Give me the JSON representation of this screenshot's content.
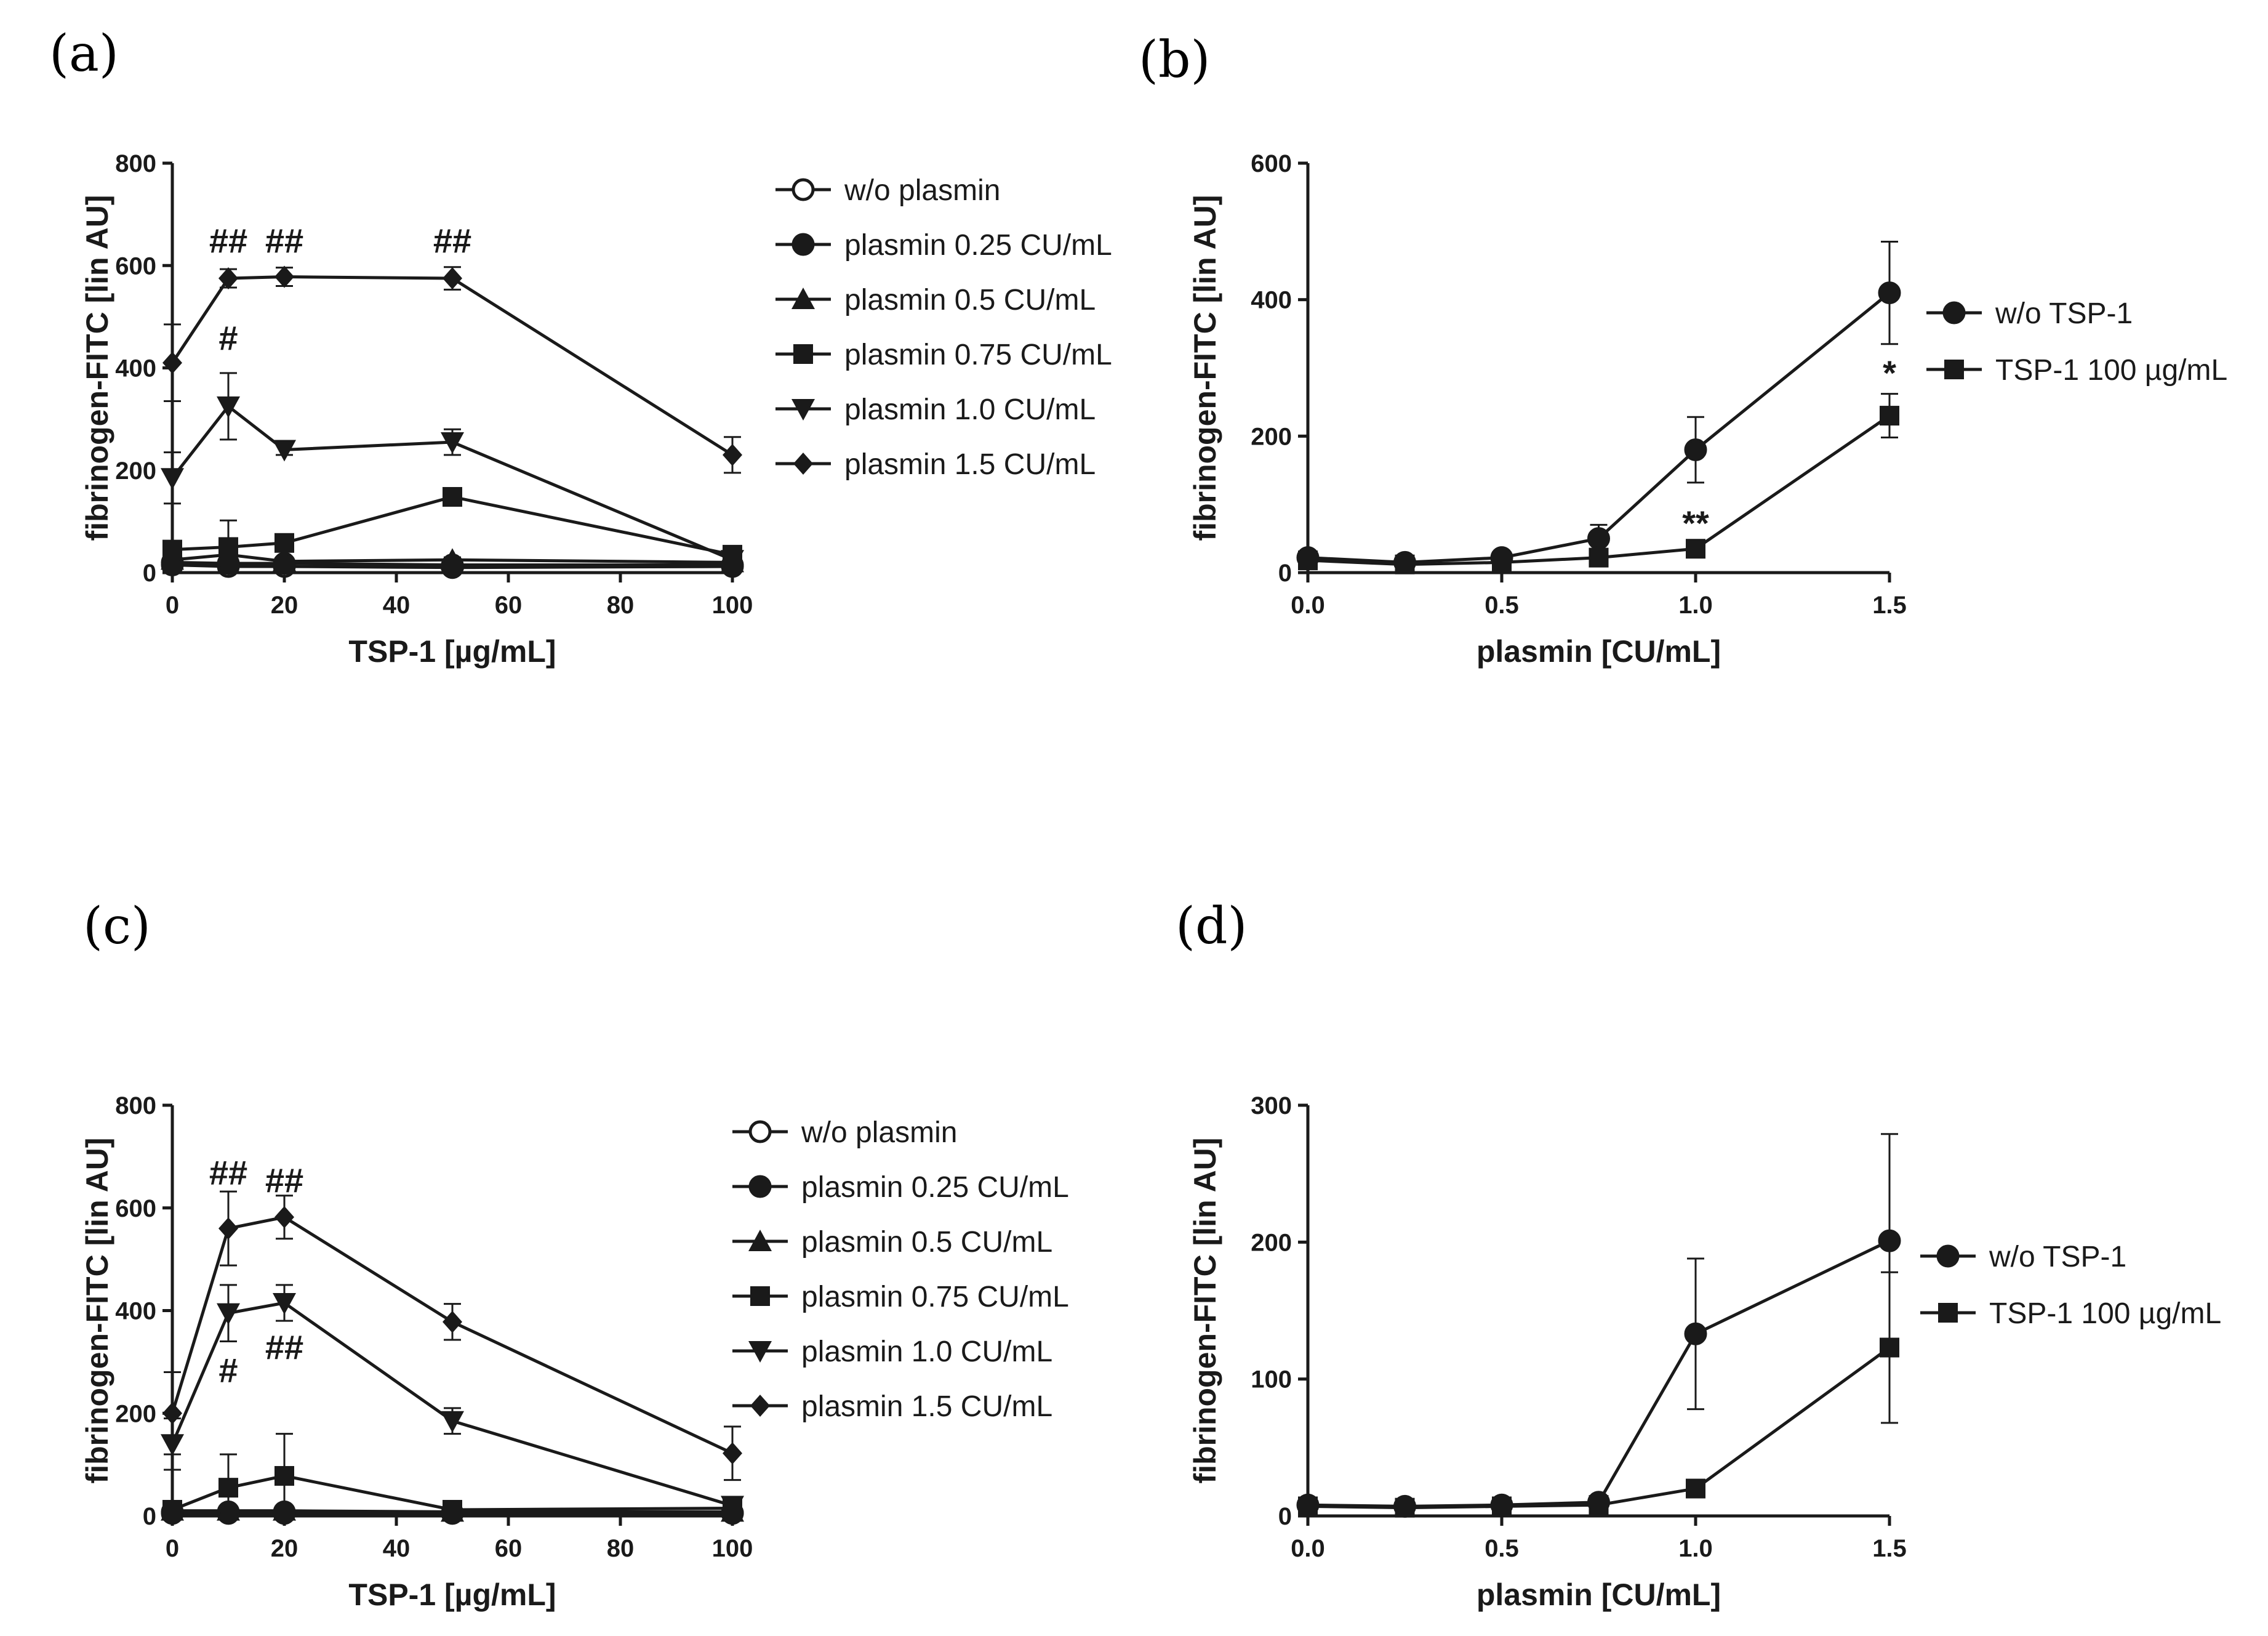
{
  "chart_data": [
    {
      "id": "a",
      "panel_label": "(a)",
      "type": "line",
      "xlabel": "TSP-1 [µg/mL]",
      "ylabel": "fibrinogen-FITC [lin AU]",
      "xlim": [
        0,
        100
      ],
      "ylim": [
        0,
        800
      ],
      "xticks": [
        0,
        20,
        40,
        60,
        80,
        100
      ],
      "yticks": [
        0,
        200,
        400,
        600,
        800
      ],
      "x": [
        0,
        10,
        20,
        50,
        100
      ],
      "series": [
        {
          "name": "w/o plasmin",
          "marker": "circle-open",
          "values": [
            15,
            12,
            12,
            10,
            12
          ],
          "errors": [
            3,
            3,
            3,
            3,
            3
          ]
        },
        {
          "name": "plasmin 0.25 CU/mL",
          "marker": "circle",
          "values": [
            20,
            18,
            18,
            15,
            15
          ],
          "errors": [
            4,
            4,
            4,
            4,
            4
          ]
        },
        {
          "name": "plasmin 0.5 CU/mL",
          "marker": "triangle-up",
          "values": [
            25,
            35,
            22,
            25,
            20
          ],
          "errors": [
            5,
            5,
            5,
            5,
            5
          ]
        },
        {
          "name": "plasmin 0.75 CU/mL",
          "marker": "square",
          "values": [
            45,
            50,
            58,
            148,
            35
          ],
          "errors": [
            15,
            52,
            10,
            8,
            8
          ]
        },
        {
          "name": "plasmin 1.0 CU/mL",
          "marker": "triangle-down",
          "values": [
            185,
            325,
            240,
            255,
            25
          ],
          "errors": [
            50,
            65,
            10,
            25,
            6
          ]
        },
        {
          "name": "plasmin 1.5 CU/mL",
          "marker": "diamond",
          "values": [
            410,
            575,
            578,
            575,
            230
          ],
          "errors": [
            75,
            18,
            18,
            22,
            35
          ]
        }
      ],
      "annotations": [
        {
          "text": "##",
          "x": 10,
          "y": 625
        },
        {
          "text": "##",
          "x": 20,
          "y": 625
        },
        {
          "text": "##",
          "x": 50,
          "y": 625
        },
        {
          "text": "#",
          "x": 10,
          "y": 435
        }
      ]
    },
    {
      "id": "b",
      "panel_label": "(b)",
      "type": "line",
      "xlabel": "plasmin [CU/mL]",
      "ylabel": "fibrinogen-FITC [lin AU]",
      "xlim": [
        0,
        1.5
      ],
      "ylim": [
        0,
        600
      ],
      "xticks": [
        0.0,
        0.5,
        1.0,
        1.5
      ],
      "xtick_labels": [
        "0.0",
        "0.5",
        "1.0",
        "1.5"
      ],
      "yticks": [
        0,
        200,
        400,
        600
      ],
      "x": [
        0,
        0.25,
        0.5,
        0.75,
        1.0,
        1.5
      ],
      "series": [
        {
          "name": "w/o TSP-1",
          "marker": "circle",
          "values": [
            22,
            15,
            22,
            50,
            180,
            410
          ],
          "errors": [
            5,
            4,
            5,
            20,
            48,
            75
          ]
        },
        {
          "name": "TSP-1 100 µg/mL",
          "marker": "square",
          "values": [
            18,
            12,
            15,
            22,
            35,
            230
          ],
          "errors": [
            4,
            3,
            3,
            5,
            6,
            32
          ]
        }
      ],
      "annotations": [
        {
          "text": "**",
          "x": 1.0,
          "y": 55
        },
        {
          "text": "*",
          "x": 1.5,
          "y": 275
        }
      ]
    },
    {
      "id": "c",
      "panel_label": "(c)",
      "type": "line",
      "xlabel": "TSP-1 [µg/mL]",
      "ylabel": "fibrinogen-FITC [lin AU]",
      "xlim": [
        0,
        100
      ],
      "ylim": [
        0,
        800
      ],
      "xticks": [
        0,
        20,
        40,
        60,
        80,
        100
      ],
      "yticks": [
        0,
        200,
        400,
        600,
        800
      ],
      "x": [
        0,
        10,
        20,
        50,
        100
      ],
      "series": [
        {
          "name": "w/o plasmin",
          "marker": "circle-open",
          "values": [
            5,
            5,
            5,
            5,
            5
          ],
          "errors": [
            2,
            2,
            2,
            2,
            2
          ]
        },
        {
          "name": "plasmin 0.25 CU/mL",
          "marker": "circle",
          "values": [
            8,
            8,
            8,
            6,
            6
          ],
          "errors": [
            2,
            2,
            2,
            2,
            2
          ]
        },
        {
          "name": "plasmin 0.5 CU/mL",
          "marker": "triangle-up",
          "values": [
            10,
            10,
            10,
            8,
            8
          ],
          "errors": [
            2,
            2,
            2,
            2,
            2
          ]
        },
        {
          "name": "plasmin 0.75 CU/mL",
          "marker": "square",
          "values": [
            12,
            55,
            78,
            12,
            15
          ],
          "errors": [
            3,
            65,
            82,
            5,
            5
          ]
        },
        {
          "name": "plasmin 1.0 CU/mL",
          "marker": "triangle-down",
          "values": [
            140,
            395,
            415,
            185,
            20
          ],
          "errors": [
            50,
            55,
            35,
            25,
            6
          ]
        },
        {
          "name": "plasmin 1.5 CU/mL",
          "marker": "diamond",
          "values": [
            200,
            560,
            582,
            378,
            122
          ],
          "errors": [
            80,
            72,
            42,
            35,
            52
          ]
        }
      ],
      "annotations": [
        {
          "text": "##",
          "x": 10,
          "y": 645
        },
        {
          "text": "##",
          "x": 20,
          "y": 630
        },
        {
          "text": "#",
          "x": 10,
          "y": 260
        },
        {
          "text": "##",
          "x": 20,
          "y": 305
        }
      ]
    },
    {
      "id": "d",
      "panel_label": "(d)",
      "type": "line",
      "xlabel": "plasmin [CU/mL]",
      "ylabel": "fibrinogen-FITC [lin AU]",
      "xlim": [
        0,
        1.5
      ],
      "ylim": [
        0,
        300
      ],
      "xticks": [
        0.0,
        0.5,
        1.0,
        1.5
      ],
      "xtick_labels": [
        "0.0",
        "0.5",
        "1.0",
        "1.5"
      ],
      "yticks": [
        0,
        100,
        200,
        300
      ],
      "x": [
        0,
        0.25,
        0.5,
        0.75,
        1.0,
        1.5
      ],
      "series": [
        {
          "name": "w/o TSP-1",
          "marker": "circle",
          "values": [
            8,
            7,
            8,
            10,
            133,
            201
          ],
          "errors": [
            2,
            2,
            2,
            3,
            55,
            78
          ]
        },
        {
          "name": "TSP-1 100 µg/mL",
          "marker": "square",
          "values": [
            7,
            6,
            7,
            8,
            20,
            123
          ],
          "errors": [
            2,
            2,
            2,
            2,
            4,
            55
          ]
        }
      ],
      "annotations": []
    }
  ]
}
